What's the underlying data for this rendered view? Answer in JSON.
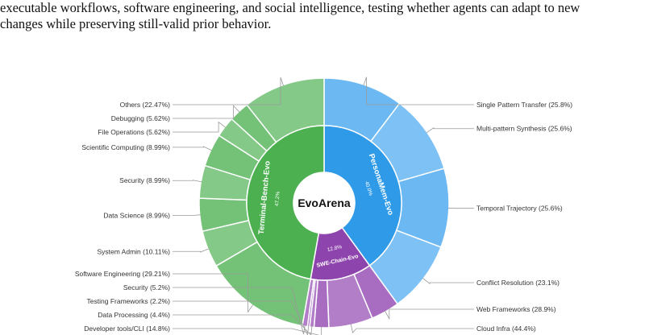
{
  "caption": {
    "line1": "executable workflows, software engineering, and social intelligence, testing whether agents can adapt to new",
    "line2": "changes while preserving still-valid prior behavior."
  },
  "chart_data": {
    "type": "sunburst",
    "center_label": "EvoArena",
    "inner": [
      {
        "name": "PersonaMem-Evo",
        "value": 40,
        "value_label": "40.0%",
        "color": "#2f9be8"
      },
      {
        "name": "SWE-Chain-Evo",
        "value": 12.8,
        "value_label": "12.8%",
        "color": "#8e44ad"
      },
      {
        "name": "Terminal-Bench-Evo",
        "value": 47.2,
        "value_label": "47.2%",
        "color": "#4cb050"
      }
    ],
    "outer": {
      "PersonaMem-Evo": {
        "color": "#6cb8f2",
        "items": [
          {
            "label": "Single Pattern Transfer (25.8%)",
            "value": 25.8
          },
          {
            "label": "Multi-pattern Synthesis (25.6%)",
            "value": 25.6
          },
          {
            "label": "Temporal Trajectory (25.6%)",
            "value": 25.6
          },
          {
            "label": "Conflict Resolution (23.1%)",
            "value": 23.1
          }
        ]
      },
      "SWE-Chain-Evo": {
        "color": "#a86cc1",
        "items": [
          {
            "label": "Web Frameworks (28.9%)",
            "value": 28.9
          },
          {
            "label": "Cloud Infra (44.4%)",
            "value": 44.4
          },
          {
            "label": "Developer tools/CLI (14.8%)",
            "value": 14.8
          },
          {
            "label": "Data Processing (4.4%)",
            "value": 4.4
          },
          {
            "label": "Testing Frameworks (2.2%)",
            "value": 2.2
          },
          {
            "label": "Security (5.2%)",
            "value": 5.2
          }
        ]
      },
      "Terminal-Bench-Evo": {
        "color": "#74c278",
        "items": [
          {
            "label": "Software Engineering (29.21%)",
            "value": 29.21
          },
          {
            "label": "System Admin (10.11%)",
            "value": 10.11
          },
          {
            "label": "Data Science (8.99%)",
            "value": 8.99
          },
          {
            "label": "Security (8.99%)",
            "value": 8.99
          },
          {
            "label": "Scientific Computing (8.99%)",
            "value": 8.99
          },
          {
            "label": "File Operations (5.62%)",
            "value": 5.62
          },
          {
            "label": "Debugging (5.62%)",
            "value": 5.62
          },
          {
            "label": "Others (22.47%)",
            "value": 22.47
          }
        ]
      }
    }
  }
}
